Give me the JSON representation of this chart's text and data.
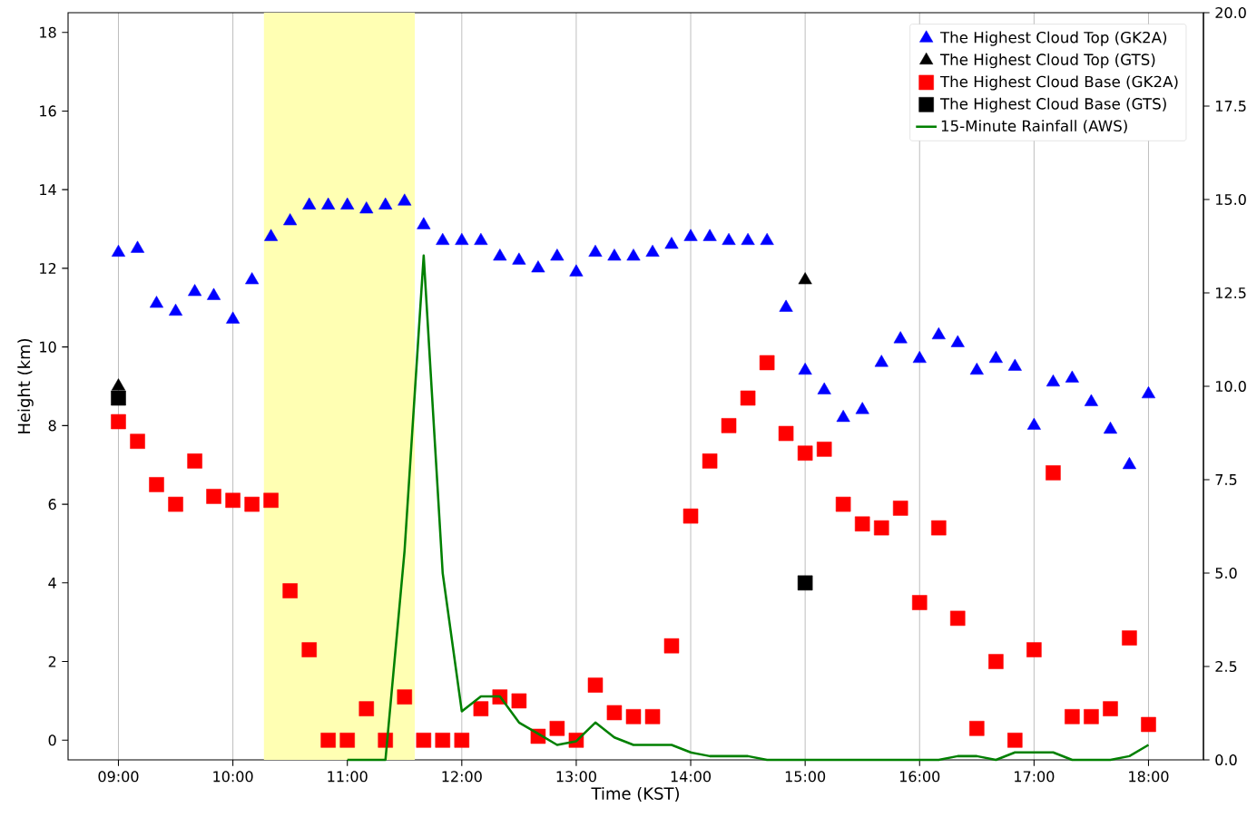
{
  "chart_data": {
    "type": "scatter",
    "xlabel": "Time (KST)",
    "ylabel": "Height (km)",
    "x": [
      9,
      9.167,
      9.333,
      9.5,
      9.667,
      9.833,
      10,
      10.167,
      10.333,
      10.5,
      10.667,
      10.833,
      11,
      11.167,
      11.333,
      11.5,
      11.667,
      11.833,
      12,
      12.167,
      12.333,
      12.5,
      12.667,
      12.833,
      13,
      13.167,
      13.333,
      13.5,
      13.667,
      13.833,
      14,
      14.167,
      14.333,
      14.5,
      14.667,
      14.833,
      15,
      15.167,
      15.333,
      15.5,
      15.667,
      15.833,
      16,
      16.167,
      16.333,
      16.5,
      16.667,
      16.833,
      17,
      17.167,
      17.333,
      17.5,
      17.667,
      17.833,
      18
    ],
    "series": [
      {
        "name": "The Highest Cloud Top (GK2A)",
        "color": "#0000ff",
        "marker": "triangle",
        "values": [
          12.4,
          12.5,
          11.1,
          10.9,
          11.4,
          11.3,
          10.7,
          11.7,
          12.8,
          13.2,
          13.6,
          13.6,
          13.6,
          13.5,
          13.6,
          13.7,
          13.1,
          12.7,
          12.7,
          12.7,
          12.3,
          12.2,
          12.0,
          12.3,
          11.9,
          12.4,
          12.3,
          12.3,
          12.4,
          12.6,
          12.8,
          12.8,
          12.7,
          12.7,
          12.7,
          11.0,
          9.4,
          8.9,
          8.2,
          8.4,
          9.6,
          10.2,
          9.7,
          10.3,
          10.1,
          9.4,
          9.7,
          9.5,
          8.0,
          9.1,
          9.2,
          8.6,
          7.9,
          7.0,
          8.8
        ]
      },
      {
        "name": "The Highest Cloud Top (GTS)",
        "color": "#000000",
        "marker": "triangle",
        "x": [
          9,
          15
        ],
        "values": [
          9.0,
          11.7
        ]
      },
      {
        "name": "The Highest Cloud Base (GK2A)",
        "color": "#ff0000",
        "marker": "square",
        "values": [
          8.1,
          7.6,
          6.5,
          6.0,
          7.1,
          6.2,
          6.1,
          6.0,
          6.1,
          3.8,
          2.3,
          0,
          0,
          0.8,
          0,
          1.1,
          0,
          0,
          0,
          0.8,
          1.1,
          1.0,
          0.1,
          0.3,
          0,
          1.4,
          0.7,
          0.6,
          0.6,
          2.4,
          5.7,
          7.1,
          8.0,
          8.7,
          9.6,
          7.8,
          7.3,
          7.4,
          6.0,
          5.5,
          5.4,
          5.9,
          3.5,
          5.4,
          3.1,
          0.3,
          2.0,
          0,
          2.3,
          6.8,
          0.6,
          0.6,
          0.8,
          2.6,
          0.4
        ]
      },
      {
        "name": "The Highest Cloud Base (GTS)",
        "color": "#000000",
        "marker": "square",
        "x": [
          9,
          15
        ],
        "values": [
          8.7,
          4.0
        ]
      },
      {
        "name": "15-Minute Rainfall (AWS)",
        "type": "line",
        "axis": "y2",
        "color": "#008000",
        "marker": "none",
        "line_style": "solid",
        "x": [
          11,
          11.167,
          11.333,
          11.5,
          11.667,
          11.833,
          12,
          12.167,
          12.333,
          12.5,
          12.667,
          12.833,
          13,
          13.167,
          13.333,
          13.5,
          13.667,
          13.833,
          14,
          14.167,
          14.333,
          14.5,
          14.667,
          14.833,
          15,
          15.167,
          15.333,
          15.5,
          15.667,
          15.833,
          16,
          16.167,
          16.333,
          16.5,
          16.667,
          16.833,
          17,
          17.167,
          17.333,
          17.5,
          17.667,
          17.833,
          18
        ],
        "values": [
          0,
          0,
          0,
          5.6,
          13.5,
          5.0,
          1.3,
          1.7,
          1.7,
          1.0,
          0.7,
          0.4,
          0.5,
          1.0,
          0.6,
          0.4,
          0.4,
          0.4,
          0.2,
          0.1,
          0.1,
          0.1,
          0,
          0,
          0,
          0,
          0,
          0,
          0,
          0,
          0,
          0,
          0.1,
          0.1,
          0,
          0.2,
          0.2,
          0.2,
          0,
          0,
          0,
          0.1,
          0.4
        ]
      }
    ],
    "xlim": [
      8.56,
      18.48
    ],
    "ylim": [
      -0.5,
      18.5
    ],
    "y2lim": [
      0,
      20
    ],
    "xticks": [
      {
        "value": 9,
        "label": "09:00"
      },
      {
        "value": 10,
        "label": "10:00"
      },
      {
        "value": 11,
        "label": "11:00"
      },
      {
        "value": 12,
        "label": "12:00"
      },
      {
        "value": 13,
        "label": "13:00"
      },
      {
        "value": 14,
        "label": "14:00"
      },
      {
        "value": 15,
        "label": "15:00"
      },
      {
        "value": 16,
        "label": "16:00"
      },
      {
        "value": 17,
        "label": "17:00"
      },
      {
        "value": 18,
        "label": "18:00"
      }
    ],
    "yticks": [
      0,
      2,
      4,
      6,
      8,
      10,
      12,
      14,
      16,
      18
    ],
    "y2ticks": [
      {
        "value": 0,
        "label": "0.0"
      },
      {
        "value": 2.5,
        "label": "2.5"
      },
      {
        "value": 5,
        "label": "5.0"
      },
      {
        "value": 7.5,
        "label": "7.5"
      },
      {
        "value": 10,
        "label": "10.0"
      },
      {
        "value": 12.5,
        "label": "12.5"
      },
      {
        "value": 15,
        "label": "15.0"
      },
      {
        "value": 17.5,
        "label": "17.5"
      },
      {
        "value": 20,
        "label": "20.0"
      }
    ],
    "bands": [
      {
        "axis": "x",
        "from": 10.27,
        "to": 11.59,
        "color": "#ffffb3"
      }
    ],
    "grid": "x",
    "legend": "top right"
  }
}
